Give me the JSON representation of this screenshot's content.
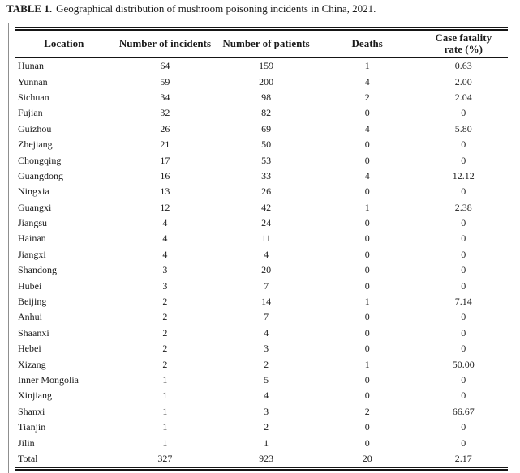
{
  "caption": {
    "label": "TABLE 1.",
    "text": "Geographical distribution of mushroom poisoning incidents in China, 2021."
  },
  "table": {
    "columns": [
      {
        "label": "Location"
      },
      {
        "label": "Number of incidents"
      },
      {
        "label": "Number of patients"
      },
      {
        "label": "Deaths"
      },
      {
        "label": "Case fatality",
        "label2": "rate (%)"
      }
    ],
    "rows": [
      [
        "Hunan",
        "64",
        "159",
        "1",
        "0.63"
      ],
      [
        "Yunnan",
        "59",
        "200",
        "4",
        "2.00"
      ],
      [
        "Sichuan",
        "34",
        "98",
        "2",
        "2.04"
      ],
      [
        "Fujian",
        "32",
        "82",
        "0",
        "0"
      ],
      [
        "Guizhou",
        "26",
        "69",
        "4",
        "5.80"
      ],
      [
        "Zhejiang",
        "21",
        "50",
        "0",
        "0"
      ],
      [
        "Chongqing",
        "17",
        "53",
        "0",
        "0"
      ],
      [
        "Guangdong",
        "16",
        "33",
        "4",
        "12.12"
      ],
      [
        "Ningxia",
        "13",
        "26",
        "0",
        "0"
      ],
      [
        "Guangxi",
        "12",
        "42",
        "1",
        "2.38"
      ],
      [
        "Jiangsu",
        "4",
        "24",
        "0",
        "0"
      ],
      [
        "Hainan",
        "4",
        "11",
        "0",
        "0"
      ],
      [
        "Jiangxi",
        "4",
        "4",
        "0",
        "0"
      ],
      [
        "Shandong",
        "3",
        "20",
        "0",
        "0"
      ],
      [
        "Hubei",
        "3",
        "7",
        "0",
        "0"
      ],
      [
        "Beijing",
        "2",
        "14",
        "1",
        "7.14"
      ],
      [
        "Anhui",
        "2",
        "7",
        "0",
        "0"
      ],
      [
        "Shaanxi",
        "2",
        "4",
        "0",
        "0"
      ],
      [
        "Hebei",
        "2",
        "3",
        "0",
        "0"
      ],
      [
        "Xizang",
        "2",
        "2",
        "1",
        "50.00"
      ],
      [
        "Inner Mongolia",
        "1",
        "5",
        "0",
        "0"
      ],
      [
        "Xinjiang",
        "1",
        "4",
        "0",
        "0"
      ],
      [
        "Shanxi",
        "1",
        "3",
        "2",
        "66.67"
      ],
      [
        "Tianjin",
        "1",
        "2",
        "0",
        "0"
      ],
      [
        "Jilin",
        "1",
        "1",
        "0",
        "0"
      ]
    ],
    "total": [
      "Total",
      "327",
      "923",
      "20",
      "2.17"
    ]
  },
  "colors": {
    "rule": "#151515",
    "box_border": "#8f8f8f",
    "text": "#1b1b1b",
    "background": "#ffffff"
  }
}
